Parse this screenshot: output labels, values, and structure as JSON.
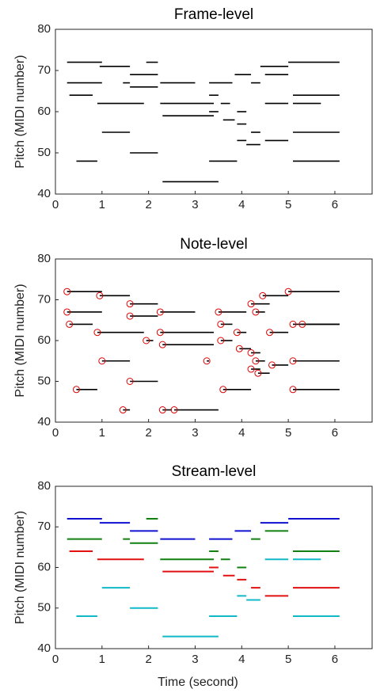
{
  "chart_data": [
    {
      "type": "segment",
      "title": "Frame-level",
      "ylabel": "Pitch (MIDI number)",
      "xlim": [
        0,
        6.8
      ],
      "ylim": [
        40,
        80
      ],
      "xticks": [
        0,
        1,
        2,
        3,
        4,
        5,
        6
      ],
      "yticks": [
        40,
        50,
        60,
        70,
        80
      ],
      "color": "#000000",
      "segments": [
        [
          0.25,
          1.0,
          72
        ],
        [
          0.25,
          1.0,
          67
        ],
        [
          0.3,
          0.8,
          64
        ],
        [
          0.45,
          0.9,
          48
        ],
        [
          0.95,
          1.6,
          71
        ],
        [
          0.9,
          1.9,
          62
        ],
        [
          1.0,
          1.6,
          55
        ],
        [
          1.45,
          1.6,
          67
        ],
        [
          1.6,
          2.2,
          69
        ],
        [
          1.6,
          2.2,
          66
        ],
        [
          1.6,
          2.2,
          50
        ],
        [
          1.95,
          2.2,
          72
        ],
        [
          2.25,
          3.0,
          67
        ],
        [
          2.25,
          3.4,
          62
        ],
        [
          2.3,
          3.4,
          59
        ],
        [
          2.3,
          3.5,
          43
        ],
        [
          3.3,
          3.8,
          67
        ],
        [
          3.3,
          3.5,
          64
        ],
        [
          3.3,
          3.5,
          60
        ],
        [
          3.3,
          3.9,
          48
        ],
        [
          3.55,
          3.75,
          62
        ],
        [
          3.6,
          3.85,
          58
        ],
        [
          3.85,
          4.2,
          69
        ],
        [
          3.9,
          4.1,
          60
        ],
        [
          3.9,
          4.1,
          57
        ],
        [
          3.9,
          4.1,
          53
        ],
        [
          4.1,
          4.4,
          52
        ],
        [
          4.2,
          4.4,
          67
        ],
        [
          4.2,
          4.4,
          55
        ],
        [
          4.4,
          5.0,
          71
        ],
        [
          4.5,
          5.0,
          62
        ],
        [
          4.5,
          5.0,
          69
        ],
        [
          4.5,
          5.0,
          53
        ],
        [
          5.0,
          6.1,
          72
        ],
        [
          5.1,
          6.1,
          64
        ],
        [
          5.1,
          6.1,
          55
        ],
        [
          5.1,
          6.1,
          48
        ],
        [
          5.1,
          5.7,
          62
        ]
      ]
    },
    {
      "type": "segment",
      "title": "Note-level",
      "ylabel": "Pitch (MIDI number)",
      "xlim": [
        0,
        6.8
      ],
      "ylim": [
        40,
        80
      ],
      "xticks": [
        0,
        1,
        2,
        3,
        4,
        5,
        6
      ],
      "yticks": [
        40,
        50,
        60,
        70,
        80
      ],
      "color": "#000000",
      "markers": "circle",
      "marker_color": "#e00000",
      "segments": [
        [
          0.25,
          1.0,
          72
        ],
        [
          0.25,
          1.0,
          67
        ],
        [
          0.3,
          0.8,
          64
        ],
        [
          0.45,
          0.9,
          48
        ],
        [
          0.95,
          1.6,
          71
        ],
        [
          0.9,
          1.9,
          62
        ],
        [
          1.0,
          1.6,
          55
        ],
        [
          1.45,
          1.6,
          43
        ],
        [
          1.6,
          2.2,
          69
        ],
        [
          1.6,
          2.2,
          66
        ],
        [
          1.6,
          2.2,
          50
        ],
        [
          1.95,
          2.1,
          60
        ],
        [
          2.25,
          3.0,
          67
        ],
        [
          2.25,
          3.4,
          62
        ],
        [
          2.3,
          3.4,
          59
        ],
        [
          2.3,
          2.5,
          43
        ],
        [
          2.55,
          3.5,
          43
        ],
        [
          3.25,
          3.3,
          55
        ],
        [
          3.5,
          4.1,
          67
        ],
        [
          3.55,
          3.8,
          64
        ],
        [
          3.55,
          3.8,
          60
        ],
        [
          3.6,
          4.2,
          48
        ],
        [
          3.9,
          4.1,
          62
        ],
        [
          3.95,
          4.2,
          58
        ],
        [
          4.2,
          4.6,
          69
        ],
        [
          4.3,
          4.5,
          67
        ],
        [
          4.2,
          4.4,
          57
        ],
        [
          4.2,
          4.4,
          53
        ],
        [
          4.3,
          4.5,
          55
        ],
        [
          4.35,
          4.6,
          52
        ],
        [
          4.45,
          5.0,
          71
        ],
        [
          4.6,
          5.0,
          62
        ],
        [
          4.65,
          5.0,
          54
        ],
        [
          5.0,
          6.1,
          72
        ],
        [
          5.1,
          6.1,
          64
        ],
        [
          5.3,
          6.1,
          64
        ],
        [
          5.1,
          6.1,
          55
        ],
        [
          5.1,
          6.1,
          48
        ]
      ]
    },
    {
      "type": "stream",
      "title": "Stream-level",
      "ylabel": "Pitch (MIDI number)",
      "xlabel": "Time (second)",
      "xlim": [
        0,
        6.8
      ],
      "ylim": [
        40,
        80
      ],
      "xticks": [
        0,
        1,
        2,
        3,
        4,
        5,
        6
      ],
      "yticks": [
        40,
        50,
        60,
        70,
        80
      ],
      "series": [
        {
          "color": "#1010d0",
          "segments": [
            [
              0.25,
              1.0,
              72
            ],
            [
              0.95,
              1.6,
              71
            ],
            [
              1.6,
              2.2,
              69
            ],
            [
              2.25,
              3.0,
              67
            ],
            [
              3.3,
              3.8,
              67
            ],
            [
              3.85,
              4.2,
              69
            ],
            [
              4.4,
              5.0,
              71
            ],
            [
              5.0,
              6.1,
              72
            ]
          ]
        },
        {
          "color": "#108010",
          "segments": [
            [
              0.25,
              1.0,
              67
            ],
            [
              1.45,
              1.6,
              67
            ],
            [
              1.6,
              2.2,
              66
            ],
            [
              1.95,
              2.2,
              72
            ],
            [
              2.25,
              3.4,
              62
            ],
            [
              3.3,
              3.5,
              64
            ],
            [
              3.55,
              3.75,
              62
            ],
            [
              3.9,
              4.1,
              60
            ],
            [
              4.2,
              4.4,
              67
            ],
            [
              4.5,
              5.0,
              69
            ],
            [
              5.1,
              6.1,
              64
            ]
          ]
        },
        {
          "color": "#e01010",
          "segments": [
            [
              0.3,
              0.8,
              64
            ],
            [
              0.9,
              1.9,
              62
            ],
            [
              2.3,
              3.4,
              59
            ],
            [
              3.3,
              3.5,
              60
            ],
            [
              3.6,
              3.85,
              58
            ],
            [
              3.9,
              4.1,
              57
            ],
            [
              4.2,
              4.4,
              55
            ],
            [
              4.5,
              5.0,
              53
            ],
            [
              5.1,
              6.1,
              55
            ]
          ]
        },
        {
          "color": "#10b8c8",
          "segments": [
            [
              0.45,
              0.9,
              48
            ],
            [
              1.0,
              1.6,
              55
            ],
            [
              1.6,
              2.2,
              50
            ],
            [
              2.3,
              3.5,
              43
            ],
            [
              3.3,
              3.9,
              48
            ],
            [
              3.9,
              4.1,
              53
            ],
            [
              4.1,
              4.4,
              52
            ],
            [
              4.5,
              5.0,
              62
            ],
            [
              5.1,
              5.7,
              62
            ],
            [
              5.1,
              6.1,
              48
            ]
          ]
        }
      ]
    }
  ]
}
